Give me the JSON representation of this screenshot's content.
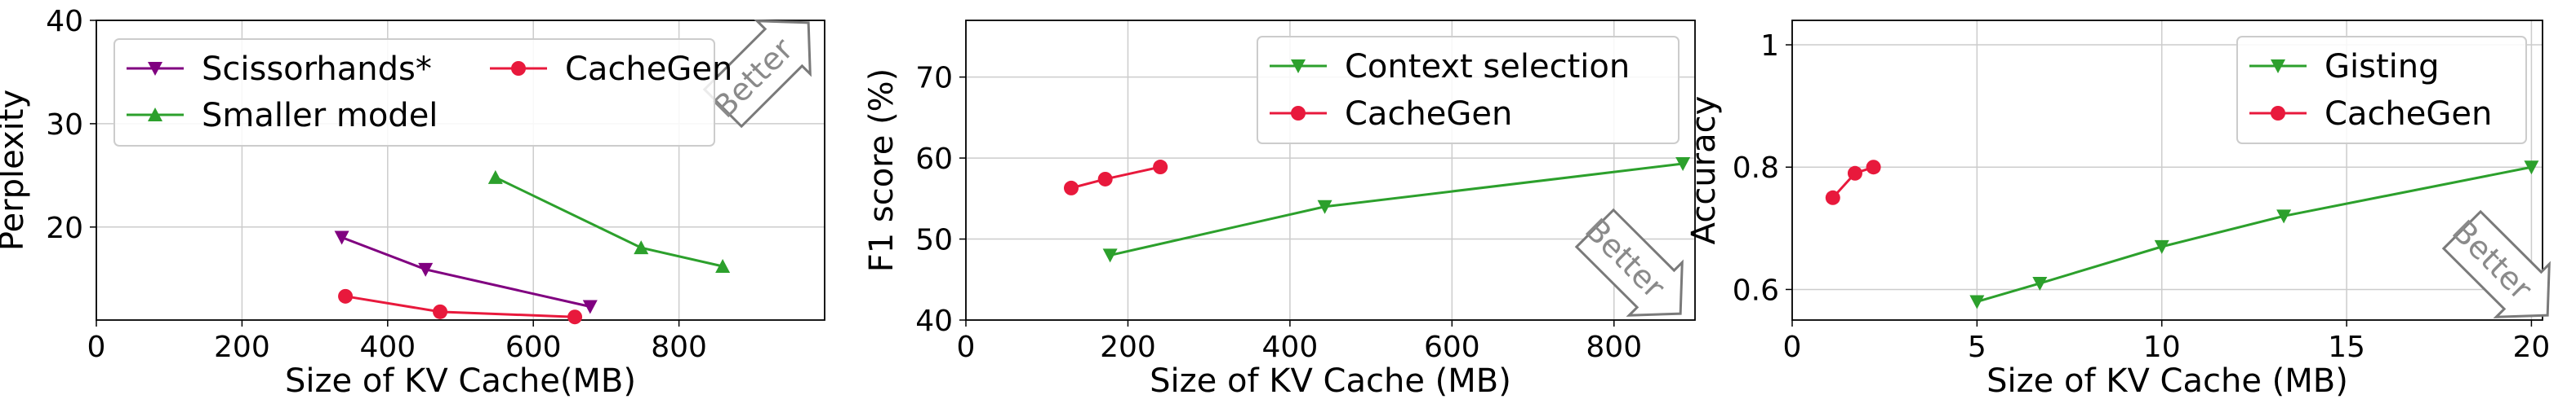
{
  "chart_data": [
    {
      "type": "line",
      "xlabel": "Size of KV Cache(MB)",
      "ylabel": "Perplexity",
      "xlim": [
        0,
        1000
      ],
      "ylim": [
        11,
        40
      ],
      "xticks": [
        0,
        200,
        400,
        600,
        800
      ],
      "yticks": [
        20,
        30,
        40
      ],
      "grid": true,
      "legend_position": "top-left",
      "annotation": "Better",
      "series": [
        {
          "name": "Scissorhands*",
          "color": "#800080",
          "marker": "triangle-down",
          "x": [
            337,
            452,
            678
          ],
          "y": [
            19.0,
            15.9,
            12.3
          ]
        },
        {
          "name": "CacheGen",
          "color": "#e8193c",
          "marker": "circle",
          "x": [
            342,
            472,
            657
          ],
          "y": [
            13.3,
            11.8,
            11.3
          ]
        },
        {
          "name": "Smaller model",
          "color": "#2ca02c",
          "marker": "triangle-up",
          "x": [
            548,
            748,
            860
          ],
          "y": [
            24.8,
            18.0,
            16.2
          ]
        }
      ]
    },
    {
      "type": "line",
      "xlabel": "Size of KV Cache (MB)",
      "ylabel": "F1 score (%)",
      "xlim": [
        0,
        900
      ],
      "ylim": [
        40,
        77
      ],
      "xticks": [
        0,
        200,
        400,
        600,
        800
      ],
      "yticks": [
        40,
        50,
        60,
        70
      ],
      "grid": true,
      "legend_position": "top-right",
      "annotation": "Better",
      "series": [
        {
          "name": "Context selection",
          "color": "#2ca02c",
          "marker": "triangle-down",
          "x": [
            178,
            443,
            885
          ],
          "y": [
            48.0,
            54.0,
            59.3
          ]
        },
        {
          "name": "CacheGen",
          "color": "#e8193c",
          "marker": "circle",
          "x": [
            130,
            172,
            240
          ],
          "y": [
            56.3,
            57.4,
            58.9
          ]
        }
      ]
    },
    {
      "type": "line",
      "xlabel": "Size of KV Cache (MB)",
      "ylabel": "Accuracy",
      "xlim": [
        0,
        20.3
      ],
      "ylim": [
        0.55,
        1.04
      ],
      "xticks": [
        0,
        5,
        10,
        15,
        20
      ],
      "yticks": [
        0.6,
        0.8,
        1.0
      ],
      "grid": true,
      "legend_position": "top-right",
      "annotation": "Better",
      "series": [
        {
          "name": "Gisting",
          "color": "#2ca02c",
          "marker": "triangle-down",
          "x": [
            5.0,
            6.7,
            10.0,
            13.3,
            20.0
          ],
          "y": [
            0.58,
            0.61,
            0.67,
            0.72,
            0.8
          ]
        },
        {
          "name": "CacheGen",
          "color": "#e8193c",
          "marker": "circle",
          "x": [
            1.1,
            1.7,
            2.2
          ],
          "y": [
            0.75,
            0.79,
            0.8
          ]
        }
      ]
    }
  ]
}
